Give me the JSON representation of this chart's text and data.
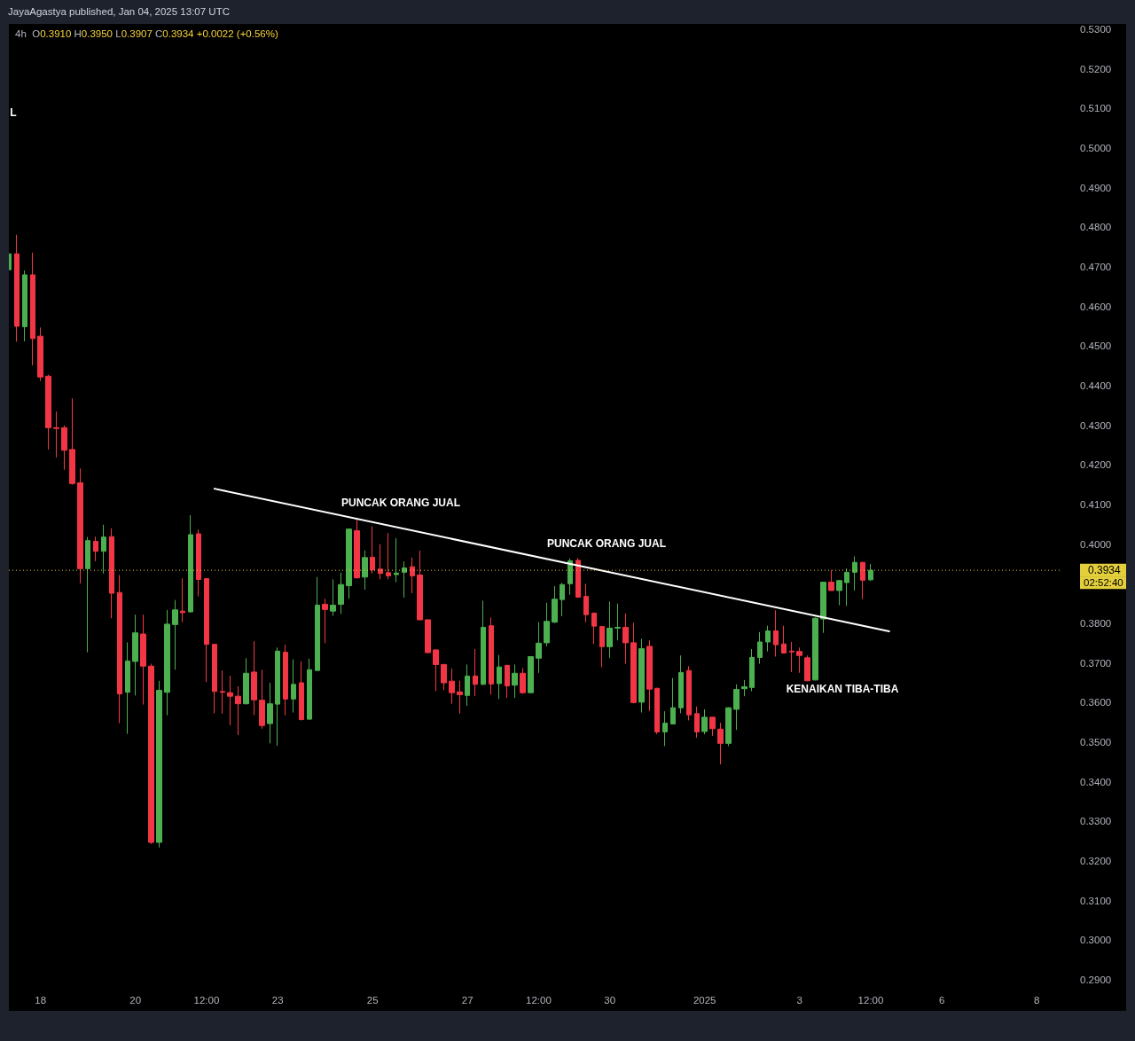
{
  "chart_data": {
    "type": "candlestick",
    "title": "4h",
    "subtitle": "O0.3910 H0.3950 L0.3907 C0.3934 +0.0022 (+0.56%)",
    "annotations": [
      "JayaAgastya published, Jan 04, 2025 13:07 UTC",
      "L",
      "PUNCAK ORANG JUAL",
      "PUNCAK ORANG JUAL",
      "KENAIKAN TIBA-TIBA",
      "02:52:40"
    ],
    "xlim": [
      "2024-12-17T08:00",
      "2025-01-08T12:00"
    ],
    "xticks": [
      {
        "value": "2024-12-18T00:00",
        "label": "18"
      },
      {
        "value": "2024-12-20T00:00",
        "label": "20"
      },
      {
        "value": "2024-12-21T12:00",
        "label": "12:00"
      },
      {
        "value": "2024-12-23T00:00",
        "label": "23"
      },
      {
        "value": "2024-12-25T00:00",
        "label": "25"
      },
      {
        "value": "2024-12-27T00:00",
        "label": "27"
      },
      {
        "value": "2024-12-28T12:00",
        "label": "12:00"
      },
      {
        "value": "2024-12-30T00:00",
        "label": "30"
      },
      {
        "value": "2025-01-01T00:00",
        "label": "2025"
      },
      {
        "value": "2025-01-03T00:00",
        "label": "3"
      },
      {
        "value": "2025-01-04T12:00",
        "label": "12:00"
      },
      {
        "value": "2025-01-06T00:00",
        "label": "6"
      },
      {
        "value": "2025-01-08T00:00",
        "label": "8"
      }
    ],
    "ylim": [
      0.29,
      0.53
    ],
    "yticks": [
      {
        "value": 0.29,
        "label": "0.2900"
      },
      {
        "value": 0.3,
        "label": "0.3000"
      },
      {
        "value": 0.31,
        "label": "0.3100"
      },
      {
        "value": 0.32,
        "label": "0.3200"
      },
      {
        "value": 0.33,
        "label": "0.3300"
      },
      {
        "value": 0.34,
        "label": "0.3400"
      },
      {
        "value": 0.35,
        "label": "0.3500"
      },
      {
        "value": 0.36,
        "label": "0.3600"
      },
      {
        "value": 0.37,
        "label": "0.3700"
      },
      {
        "value": 0.38,
        "label": "0.3800"
      },
      {
        "value": 0.4,
        "label": "0.4000"
      },
      {
        "value": 0.41,
        "label": "0.4100"
      },
      {
        "value": 0.42,
        "label": "0.4200"
      },
      {
        "value": 0.43,
        "label": "0.4300"
      },
      {
        "value": 0.44,
        "label": "0.4400"
      },
      {
        "value": 0.45,
        "label": "0.4500"
      },
      {
        "value": 0.46,
        "label": "0.4600"
      },
      {
        "value": 0.47,
        "label": "0.4700"
      },
      {
        "value": 0.48,
        "label": "0.4800"
      },
      {
        "value": 0.49,
        "label": "0.4900"
      },
      {
        "value": 0.5,
        "label": "0.5000"
      },
      {
        "value": 0.51,
        "label": "0.5100"
      },
      {
        "value": 0.52,
        "label": "0.5200"
      },
      {
        "value": 0.53,
        "label": "0.5300"
      }
    ],
    "ref_lines": [
      {
        "axis": "y",
        "value": 0.3934,
        "label": "0.3934",
        "color": "#e3cf3c",
        "line_style": "dotted"
      }
    ],
    "series": [
      {
        "x": [
          "2024-12-17T08:00",
          "2024-12-17T12:00",
          "2024-12-17T16:00",
          "2024-12-17T20:00",
          "2024-12-18T00:00",
          "2024-12-18T04:00",
          "2024-12-18T08:00",
          "2024-12-18T12:00",
          "2024-12-18T16:00",
          "2024-12-18T20:00",
          "2024-12-19T00:00",
          "2024-12-19T04:00",
          "2024-12-19T08:00",
          "2024-12-19T12:00",
          "2024-12-19T16:00",
          "2024-12-19T20:00",
          "2024-12-20T00:00",
          "2024-12-20T04:00",
          "2024-12-20T08:00",
          "2024-12-20T12:00",
          "2024-12-20T16:00",
          "2024-12-20T20:00",
          "2024-12-21T00:00",
          "2024-12-21T04:00",
          "2024-12-21T08:00",
          "2024-12-21T12:00",
          "2024-12-21T16:00",
          "2024-12-21T20:00",
          "2024-12-22T00:00",
          "2024-12-22T04:00",
          "2024-12-22T08:00",
          "2024-12-22T12:00",
          "2024-12-22T16:00",
          "2024-12-22T20:00",
          "2024-12-23T00:00",
          "2024-12-23T04:00",
          "2024-12-23T08:00",
          "2024-12-23T12:00",
          "2024-12-23T16:00",
          "2024-12-23T20:00",
          "2024-12-24T00:00",
          "2024-12-24T04:00",
          "2024-12-24T08:00",
          "2024-12-24T12:00",
          "2024-12-24T16:00",
          "2024-12-24T20:00",
          "2024-12-25T00:00",
          "2024-12-25T04:00",
          "2024-12-25T08:00",
          "2024-12-25T12:00",
          "2024-12-25T16:00",
          "2024-12-25T20:00",
          "2024-12-26T00:00",
          "2024-12-26T04:00",
          "2024-12-26T08:00",
          "2024-12-26T12:00",
          "2024-12-26T16:00",
          "2024-12-26T20:00",
          "2024-12-27T00:00",
          "2024-12-27T04:00",
          "2024-12-27T08:00",
          "2024-12-27T12:00",
          "2024-12-27T16:00",
          "2024-12-27T20:00",
          "2024-12-28T00:00",
          "2024-12-28T04:00",
          "2024-12-28T08:00",
          "2024-12-28T12:00",
          "2024-12-28T16:00",
          "2024-12-28T20:00",
          "2024-12-29T00:00",
          "2024-12-29T04:00",
          "2024-12-29T08:00",
          "2024-12-29T12:00",
          "2024-12-29T16:00",
          "2024-12-29T20:00",
          "2024-12-30T00:00",
          "2024-12-30T04:00",
          "2024-12-30T08:00",
          "2024-12-30T12:00",
          "2024-12-30T16:00",
          "2024-12-30T20:00",
          "2024-12-31T00:00",
          "2024-12-31T04:00",
          "2024-12-31T08:00",
          "2024-12-31T12:00",
          "2024-12-31T16:00",
          "2024-12-31T20:00",
          "2025-01-01T00:00",
          "2025-01-01T04:00",
          "2025-01-01T08:00",
          "2025-01-01T12:00",
          "2025-01-01T16:00",
          "2025-01-01T20:00",
          "2025-01-02T00:00",
          "2025-01-02T04:00",
          "2025-01-02T08:00",
          "2025-01-02T12:00",
          "2025-01-02T16:00",
          "2025-01-02T20:00",
          "2025-01-03T00:00",
          "2025-01-03T04:00",
          "2025-01-03T08:00",
          "2025-01-03T12:00",
          "2025-01-03T16:00",
          "2025-01-03T20:00",
          "2025-01-04T00:00",
          "2025-01-04T04:00",
          "2025-01-04T08:00",
          "2025-01-04T12:00"
        ],
        "ohlc": [
          [
            0.4693,
            0.474,
            0.469,
            0.4733
          ],
          [
            0.4733,
            0.4781,
            0.4511,
            0.455
          ],
          [
            0.4549,
            0.4691,
            0.4512,
            0.468
          ],
          [
            0.468,
            0.4736,
            0.4451,
            0.4519
          ],
          [
            0.4525,
            0.4547,
            0.4412,
            0.4422
          ],
          [
            0.4424,
            0.4428,
            0.4239,
            0.4294
          ],
          [
            0.4294,
            0.4335,
            0.4219,
            0.4292
          ],
          [
            0.4294,
            0.43,
            0.4188,
            0.4237
          ],
          [
            0.4239,
            0.4368,
            0.415,
            0.4153
          ],
          [
            0.4155,
            0.4191,
            0.3901,
            0.3938
          ],
          [
            0.3938,
            0.4018,
            0.3727,
            0.4009
          ],
          [
            0.4007,
            0.4019,
            0.3957,
            0.3982
          ],
          [
            0.3982,
            0.4049,
            0.3926,
            0.4018
          ],
          [
            0.4019,
            0.404,
            0.3813,
            0.3876
          ],
          [
            0.3878,
            0.3922,
            0.3548,
            0.3622
          ],
          [
            0.3626,
            0.3752,
            0.3521,
            0.3705
          ],
          [
            0.3704,
            0.3822,
            0.3618,
            0.3776
          ],
          [
            0.3773,
            0.3822,
            0.3595,
            0.3692
          ],
          [
            0.3692,
            0.3698,
            0.3243,
            0.3247
          ],
          [
            0.3247,
            0.3655,
            0.3234,
            0.3631
          ],
          [
            0.3626,
            0.3834,
            0.3568,
            0.3798
          ],
          [
            0.3797,
            0.3859,
            0.3683,
            0.3834
          ],
          [
            0.3831,
            0.3914,
            0.3803,
            0.3827
          ],
          [
            0.3829,
            0.4073,
            0.3828,
            0.4024
          ],
          [
            0.4026,
            0.4037,
            0.3868,
            0.3911
          ],
          [
            0.3913,
            0.3913,
            0.3652,
            0.3747
          ],
          [
            0.3747,
            0.3748,
            0.3573,
            0.3628
          ],
          [
            0.3628,
            0.3681,
            0.3572,
            0.3626
          ],
          [
            0.3625,
            0.3668,
            0.3543,
            0.3616
          ],
          [
            0.3616,
            0.3641,
            0.3518,
            0.3597
          ],
          [
            0.3597,
            0.3712,
            0.3595,
            0.3674
          ],
          [
            0.3677,
            0.3755,
            0.3568,
            0.3607
          ],
          [
            0.3606,
            0.3683,
            0.3534,
            0.3542
          ],
          [
            0.3547,
            0.365,
            0.3497,
            0.3597
          ],
          [
            0.3596,
            0.3739,
            0.3491,
            0.373
          ],
          [
            0.3727,
            0.3746,
            0.3568,
            0.3609
          ],
          [
            0.3609,
            0.3709,
            0.3575,
            0.3646
          ],
          [
            0.365,
            0.3704,
            0.3555,
            0.3557
          ],
          [
            0.3558,
            0.3711,
            0.3556,
            0.3683
          ],
          [
            0.3681,
            0.3917,
            0.368,
            0.3846
          ],
          [
            0.3848,
            0.3862,
            0.375,
            0.3835
          ],
          [
            0.3831,
            0.3911,
            0.3819,
            0.3846
          ],
          [
            0.3848,
            0.3928,
            0.3824,
            0.3898
          ],
          [
            0.3895,
            0.404,
            0.3862,
            0.4038
          ],
          [
            0.4034,
            0.4062,
            0.3913,
            0.3915
          ],
          [
            0.3917,
            0.3984,
            0.3885,
            0.3966
          ],
          [
            0.3967,
            0.4045,
            0.3926,
            0.3935
          ],
          [
            0.3937,
            0.4,
            0.3911,
            0.3926
          ],
          [
            0.3928,
            0.4028,
            0.3911,
            0.392
          ],
          [
            0.3923,
            0.4015,
            0.3904,
            0.3927
          ],
          [
            0.3929,
            0.3956,
            0.3865,
            0.394
          ],
          [
            0.3943,
            0.3966,
            0.3876,
            0.392
          ],
          [
            0.3922,
            0.3984,
            0.3808,
            0.3809
          ],
          [
            0.3809,
            0.381,
            0.3725,
            0.3726
          ],
          [
            0.3733,
            0.3734,
            0.3629,
            0.3696
          ],
          [
            0.3696,
            0.3698,
            0.3632,
            0.365
          ],
          [
            0.3654,
            0.3686,
            0.3597,
            0.3625
          ],
          [
            0.3627,
            0.3655,
            0.3572,
            0.362
          ],
          [
            0.3618,
            0.3696,
            0.3592,
            0.3667
          ],
          [
            0.3667,
            0.3735,
            0.3616,
            0.3646
          ],
          [
            0.3646,
            0.3857,
            0.3644,
            0.379
          ],
          [
            0.3794,
            0.3815,
            0.362,
            0.3647
          ],
          [
            0.3648,
            0.372,
            0.3609,
            0.369
          ],
          [
            0.3694,
            0.3695,
            0.3612,
            0.3642
          ],
          [
            0.3644,
            0.3696,
            0.3612,
            0.3674
          ],
          [
            0.3674,
            0.3687,
            0.3622,
            0.3625
          ],
          [
            0.3625,
            0.3717,
            0.3624,
            0.3716
          ],
          [
            0.3712,
            0.3803,
            0.3675,
            0.375
          ],
          [
            0.3751,
            0.3852,
            0.3742,
            0.3805
          ],
          [
            0.3803,
            0.3894,
            0.3801,
            0.3861
          ],
          [
            0.386,
            0.3902,
            0.3818,
            0.3898
          ],
          [
            0.39,
            0.3964,
            0.3872,
            0.3958
          ],
          [
            0.3959,
            0.3965,
            0.3865,
            0.3866
          ],
          [
            0.3868,
            0.39,
            0.3803,
            0.3822
          ],
          [
            0.3826,
            0.3827,
            0.3748,
            0.3793
          ],
          [
            0.3792,
            0.3793,
            0.3689,
            0.3741
          ],
          [
            0.3741,
            0.3855,
            0.3713,
            0.3788
          ],
          [
            0.3788,
            0.385,
            0.3757,
            0.379
          ],
          [
            0.379,
            0.3825,
            0.3698,
            0.3751
          ],
          [
            0.3751,
            0.3802,
            0.3598,
            0.36
          ],
          [
            0.3601,
            0.3761,
            0.3575,
            0.3736
          ],
          [
            0.3742,
            0.3757,
            0.3579,
            0.3634
          ],
          [
            0.3636,
            0.3637,
            0.352,
            0.3526
          ],
          [
            0.3526,
            0.3578,
            0.349,
            0.3548
          ],
          [
            0.3546,
            0.3662,
            0.3545,
            0.3587
          ],
          [
            0.3587,
            0.3719,
            0.3573,
            0.3676
          ],
          [
            0.3681,
            0.3692,
            0.3555,
            0.3569
          ],
          [
            0.3572,
            0.359,
            0.3511,
            0.3526
          ],
          [
            0.3527,
            0.3583,
            0.352,
            0.3563
          ],
          [
            0.3563,
            0.3564,
            0.3516,
            0.3534
          ],
          [
            0.3533,
            0.3549,
            0.3444,
            0.3497
          ],
          [
            0.3497,
            0.3588,
            0.349,
            0.3587
          ],
          [
            0.3583,
            0.3646,
            0.3531,
            0.3633
          ],
          [
            0.3635,
            0.3657,
            0.3616,
            0.364
          ],
          [
            0.3638,
            0.3735,
            0.3629,
            0.3714
          ],
          [
            0.3714,
            0.3778,
            0.3698,
            0.3753
          ],
          [
            0.3753,
            0.3794,
            0.3729,
            0.3781
          ],
          [
            0.3781,
            0.3833,
            0.3716,
            0.3746
          ],
          [
            0.3748,
            0.3794,
            0.3724,
            0.3725
          ],
          [
            0.373,
            0.3753,
            0.3677,
            0.3728
          ],
          [
            0.3729,
            0.3739,
            0.3675,
            0.3719
          ],
          [
            0.3713,
            0.3719,
            0.3654,
            0.3655
          ],
          [
            0.3657,
            0.3815,
            0.3656,
            0.3813
          ],
          [
            0.3811,
            0.3905,
            0.3776,
            0.3904
          ],
          [
            0.3904,
            0.3934,
            0.3882,
            0.3883
          ],
          [
            0.3883,
            0.391,
            0.3846,
            0.3908
          ],
          [
            0.3903,
            0.3939,
            0.3844,
            0.3929
          ],
          [
            0.3929,
            0.3969,
            0.3883,
            0.3954
          ],
          [
            0.3954,
            0.3955,
            0.3861,
            0.3909
          ],
          [
            0.391,
            0.395,
            0.3907,
            0.3934
          ]
        ],
        "colors": [
          "#4caf50",
          "#f23645",
          "#4caf50",
          "#f23645",
          "#f23645",
          "#f23645",
          "#f23645",
          "#f23645",
          "#f23645",
          "#f23645",
          "#4caf50",
          "#f23645",
          "#4caf50",
          "#f23645",
          "#f23645",
          "#4caf50",
          "#4caf50",
          "#f23645",
          "#f23645",
          "#4caf50",
          "#4caf50",
          "#4caf50",
          "#f23645",
          "#4caf50",
          "#f23645",
          "#f23645",
          "#f23645",
          "#f23645",
          "#f23645",
          "#f23645",
          "#4caf50",
          "#f23645",
          "#f23645",
          "#4caf50",
          "#4caf50",
          "#f23645",
          "#4caf50",
          "#f23645",
          "#4caf50",
          "#4caf50",
          "#f23645",
          "#4caf50",
          "#4caf50",
          "#4caf50",
          "#f23645",
          "#4caf50",
          "#f23645",
          "#f23645",
          "#f23645",
          "#4caf50",
          "#4caf50",
          "#f23645",
          "#f23645",
          "#f23645",
          "#f23645",
          "#f23645",
          "#f23645",
          "#f23645",
          "#4caf50",
          "#f23645",
          "#4caf50",
          "#f23645",
          "#4caf50",
          "#f23645",
          "#4caf50",
          "#f23645",
          "#4caf50",
          "#4caf50",
          "#4caf50",
          "#4caf50",
          "#4caf50",
          "#4caf50",
          "#f23645",
          "#f23645",
          "#f23645",
          "#f23645",
          "#4caf50",
          "#4caf50",
          "#f23645",
          "#f23645",
          "#4caf50",
          "#f23645",
          "#f23645",
          "#4caf50",
          "#4caf50",
          "#4caf50",
          "#f23645",
          "#f23645",
          "#4caf50",
          "#f23645",
          "#f23645",
          "#4caf50",
          "#4caf50",
          "#4caf50",
          "#4caf50",
          "#4caf50",
          "#4caf50",
          "#f23645",
          "#f23645",
          "#f23645",
          "#f23645",
          "#f23645",
          "#4caf50",
          "#4caf50",
          "#f23645",
          "#4caf50",
          "#4caf50",
          "#4caf50",
          "#f23645",
          "#4caf50"
        ]
      },
      {
        "type": "line",
        "x": [
          "2024-12-21T16:00",
          "2025-01-04T21:20"
        ],
        "values": [
          0.414,
          0.378
        ],
        "color": "#ffffff"
      }
    ]
  }
}
